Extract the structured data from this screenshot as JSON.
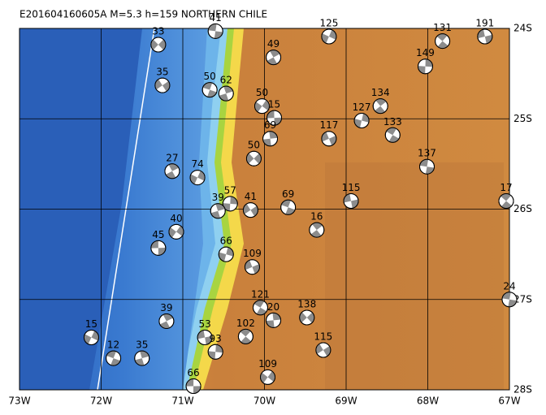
{
  "chart_data": {
    "type": "map",
    "title": "E201604160605A M=5.3 h=159 NORTHERN CHILE",
    "xlim": [
      -73,
      -67
    ],
    "ylim": [
      -28,
      -24
    ],
    "xticks": [
      {
        "value": -73,
        "label": "73W"
      },
      {
        "value": -72,
        "label": "72W"
      },
      {
        "value": -71,
        "label": "71W"
      },
      {
        "value": -70,
        "label": "70W"
      },
      {
        "value": -69,
        "label": "69W"
      },
      {
        "value": -68,
        "label": "68W"
      },
      {
        "value": -67,
        "label": "67W"
      }
    ],
    "yticks": [
      {
        "value": -24,
        "label": "24S"
      },
      {
        "value": -25,
        "label": "25S"
      },
      {
        "value": -26,
        "label": "26S"
      },
      {
        "value": -27,
        "label": "27S"
      },
      {
        "value": -28,
        "label": "28S"
      }
    ],
    "grid": true,
    "events": {
      "lon": [
        -71.3,
        -70.6,
        -69.89,
        -69.21,
        -67.3,
        -67.82,
        -68.03,
        -71.25,
        -70.67,
        -70.47,
        -70.03,
        -69.88,
        -68.58,
        -68.81,
        -69.21,
        -68.43,
        -69.93,
        -70.13,
        -68.01,
        -71.13,
        -70.82,
        -68.94,
        -67.04,
        -70.42,
        -70.17,
        -69.71,
        -70.57,
        -71.08,
        -71.3,
        -69.36,
        -70.47,
        -70.15,
        -70.05,
        -69.89,
        -69.48,
        -67.0,
        -71.2,
        -72.12,
        -70.73,
        -70.23,
        -70.6,
        -69.28,
        -71.85,
        -71.5,
        -69.96,
        -70.87
      ],
      "lat": [
        -24.18,
        -24.03,
        -24.32,
        -24.09,
        -24.09,
        -24.14,
        -24.42,
        -24.63,
        -24.68,
        -24.72,
        -24.86,
        -24.99,
        -24.86,
        -25.02,
        -25.22,
        -25.18,
        -25.22,
        -25.44,
        -25.53,
        -25.58,
        -25.65,
        -25.91,
        -25.91,
        -25.94,
        -26.01,
        -25.98,
        -26.02,
        -26.25,
        -26.43,
        -26.23,
        -26.5,
        -26.64,
        -27.09,
        -27.23,
        -27.2,
        -27.0,
        -27.24,
        -27.42,
        -27.42,
        -27.41,
        -27.58,
        -27.56,
        -27.65,
        -27.65,
        -27.86,
        -27.96
      ],
      "depth": [
        33,
        41,
        49,
        125,
        191,
        131,
        149,
        35,
        50,
        62,
        50,
        15,
        134,
        127,
        117,
        133,
        69,
        50,
        137,
        27,
        74,
        115,
        17,
        57,
        41,
        69,
        39,
        40,
        45,
        16,
        66,
        109,
        121,
        20,
        138,
        24,
        39,
        15,
        53,
        102,
        93,
        115,
        12,
        35,
        109,
        66
      ]
    }
  }
}
